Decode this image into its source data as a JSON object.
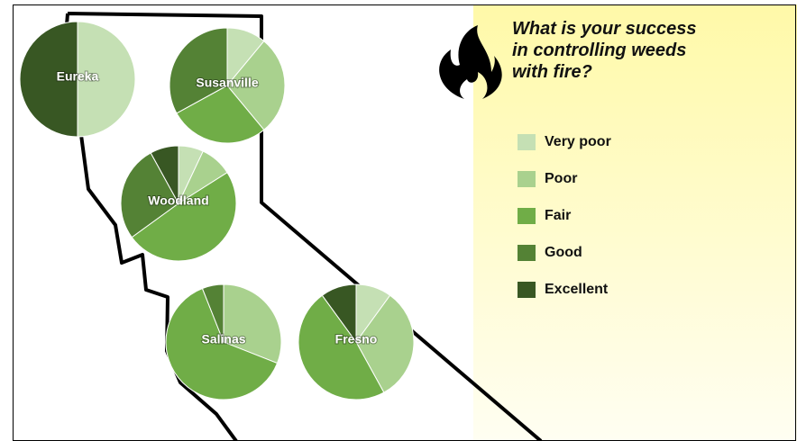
{
  "title": "What is your success in controlling weeds with fire?",
  "legend": {
    "categories": [
      "Very poor",
      "Poor",
      "Fair",
      "Good",
      "Excellent"
    ],
    "colors": [
      "#c5e0b4",
      "#a9d18e",
      "#70ad47",
      "#548235",
      "#385723"
    ]
  },
  "chart_data": [
    {
      "type": "pie",
      "title": "Eureka",
      "values": [
        50,
        0,
        0,
        0,
        50
      ]
    },
    {
      "type": "pie",
      "title": "Susanville",
      "values": [
        11,
        28,
        28,
        33,
        0
      ]
    },
    {
      "type": "pie",
      "title": "Woodland",
      "values": [
        7,
        9,
        49,
        27,
        8
      ]
    },
    {
      "type": "pie",
      "title": "Salinas",
      "values": [
        0,
        31,
        63,
        6,
        0
      ]
    },
    {
      "type": "pie",
      "title": "Fresno",
      "values": [
        10,
        32,
        48,
        0,
        10
      ]
    }
  ]
}
